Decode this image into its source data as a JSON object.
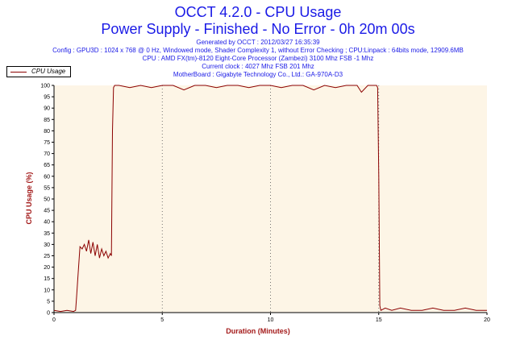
{
  "header": {
    "title_line1": "OCCT 4.2.0 - CPU Usage",
    "title_line2": "Power Supply - Finished - No Error - 0h 20m 00s",
    "info_lines": [
      "Generated by OCCT : 2012/03/27 16:35:39",
      "Config : GPU3D : 1024 x 768 @ 0 Hz, Windowed mode, Shader Complexity 1, without Error Checking ; CPU:Linpack : 64bits mode, 12909.6MB",
      "CPU : AMD FX(tm)-8120 Eight-Core Processor (Zambezi) 3100 Mhz FSB -1 Mhz",
      "Current clock : 4027 Mhz FSB 201 Mhz",
      "MotherBoard : Gigabyte Technology Co., Ltd.: GA-970A-D3"
    ]
  },
  "legend": {
    "series_name": "CPU Usage"
  },
  "colors": {
    "plot_bg": "#fdf5e6",
    "line": "#8b0000",
    "axis_title": "#a31a1a",
    "title": "#1a1ae6"
  },
  "chart_data": {
    "type": "line",
    "xlabel": "Duration (Minutes)",
    "ylabel": "CPU Usage (%)",
    "xlim": [
      0,
      20
    ],
    "ylim": [
      0,
      100
    ],
    "x_ticks": [
      0,
      5,
      10,
      15,
      20
    ],
    "y_ticks": [
      0,
      5,
      10,
      15,
      20,
      25,
      30,
      35,
      40,
      45,
      50,
      55,
      60,
      65,
      70,
      75,
      80,
      85,
      90,
      95,
      100
    ],
    "series": [
      {
        "name": "CPU Usage",
        "x": [
          0,
          0.3,
          0.6,
          0.9,
          1.0,
          1.05,
          1.1,
          1.2,
          1.3,
          1.4,
          1.5,
          1.6,
          1.7,
          1.8,
          1.9,
          2.0,
          2.1,
          2.2,
          2.3,
          2.4,
          2.5,
          2.6,
          2.65,
          2.7,
          2.75,
          2.8,
          3.0,
          3.5,
          4.0,
          4.5,
          5.0,
          5.5,
          6.0,
          6.5,
          7.0,
          7.5,
          8.0,
          8.5,
          9.0,
          9.5,
          10.0,
          10.5,
          11.0,
          11.5,
          12.0,
          12.5,
          13.0,
          13.5,
          14.0,
          14.2,
          14.5,
          14.9,
          14.95,
          15.0,
          15.05,
          15.1,
          15.3,
          15.6,
          16.0,
          16.5,
          17.0,
          17.5,
          18.0,
          18.5,
          19.0,
          19.5,
          20.0
        ],
        "y": [
          1,
          0.5,
          1,
          0.5,
          1,
          8,
          15,
          29,
          28,
          30,
          27,
          32,
          26,
          31,
          25,
          30,
          24,
          28,
          25,
          27,
          24,
          26,
          25,
          80,
          99,
          100,
          100,
          99,
          100,
          99,
          100,
          100,
          98,
          100,
          100,
          99,
          100,
          100,
          99,
          100,
          100,
          99,
          100,
          100,
          98,
          100,
          99,
          100,
          100,
          97,
          100,
          100,
          99,
          60,
          3,
          1,
          2,
          1,
          2,
          1,
          1,
          2,
          1,
          1,
          2,
          1,
          1
        ]
      }
    ],
    "grid": "vertical dotted at 5-minute intervals"
  }
}
